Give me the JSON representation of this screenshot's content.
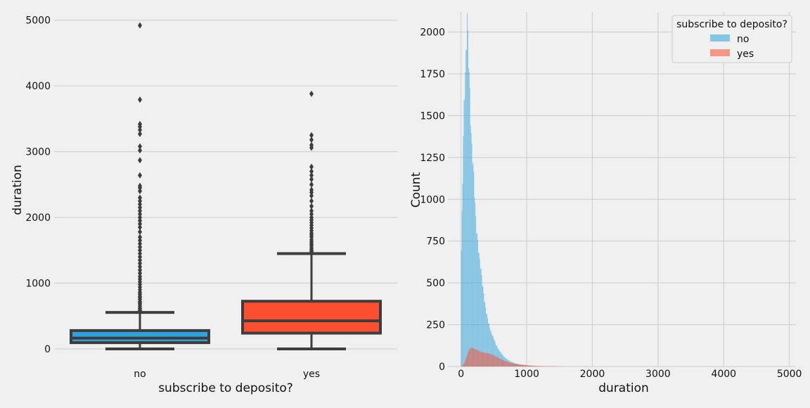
{
  "colors": {
    "background": "#f0f0f0",
    "grid": "#cbcbcb",
    "no": "#30a2da",
    "yes": "#fc4f30",
    "box_line": "#3d3d3d"
  },
  "chart_data": [
    {
      "type": "box",
      "xlabel": "subscribe to deposito?",
      "ylabel": "duration",
      "categories": [
        "no",
        "yes"
      ],
      "ylim": [
        -150,
        5200
      ],
      "yticks": [
        0,
        1000,
        2000,
        3000,
        4000,
        5000
      ],
      "grid": true,
      "boxes": [
        {
          "category": "no",
          "min": 0,
          "q1": 95,
          "median": 164,
          "q3": 279,
          "whisker_high": 555,
          "outliers": [
            560,
            580,
            600,
            620,
            650,
            680,
            700,
            720,
            750,
            780,
            800,
            830,
            860,
            900,
            940,
            980,
            1020,
            1060,
            1100,
            1150,
            1200,
            1250,
            1300,
            1350,
            1400,
            1450,
            1500,
            1550,
            1600,
            1650,
            1700,
            1780,
            1850,
            1900,
            1950,
            2000,
            2050,
            2100,
            2150,
            2200,
            2250,
            2300,
            2400,
            2450,
            2480,
            2640,
            2870,
            3020,
            3080,
            3270,
            3330,
            3380,
            3420,
            3790,
            4920
          ]
        },
        {
          "category": "yes",
          "min": 0,
          "q1": 240,
          "median": 426,
          "q3": 725,
          "whisker_high": 1450,
          "outliers": [
            1460,
            1480,
            1500,
            1520,
            1550,
            1580,
            1600,
            1630,
            1660,
            1700,
            1730,
            1760,
            1800,
            1840,
            1880,
            1920,
            1960,
            2000,
            2050,
            2100,
            2170,
            2250,
            2330,
            2380,
            2420,
            2500,
            2580,
            2640,
            2700,
            2770,
            3060,
            3100,
            3180,
            3250,
            3880
          ]
        }
      ]
    },
    {
      "type": "histogram",
      "xlabel": "duration",
      "ylabel": "Count",
      "xlim": [
        -200,
        5100
      ],
      "ylim": [
        0,
        2120
      ],
      "xticks": [
        0,
        1000,
        2000,
        3000,
        4000,
        5000
      ],
      "yticks": [
        0,
        250,
        500,
        750,
        1000,
        1250,
        1500,
        1750,
        2000
      ],
      "grid": true,
      "legend": {
        "title": "subscribe to deposito?",
        "placement": "top-right",
        "entries": [
          "no",
          "yes"
        ]
      },
      "bin_width": 10,
      "series": [
        {
          "name": "no",
          "points": [
            [
              0,
              590
            ],
            [
              20,
              1000
            ],
            [
              40,
              1470
            ],
            [
              60,
              1660
            ],
            [
              80,
              1830
            ],
            [
              95,
              2030
            ],
            [
              110,
              1830
            ],
            [
              130,
              1640
            ],
            [
              150,
              1380
            ],
            [
              170,
              1240
            ],
            [
              190,
              1170
            ],
            [
              210,
              1000
            ],
            [
              230,
              850
            ],
            [
              250,
              780
            ],
            [
              270,
              700
            ],
            [
              290,
              640
            ],
            [
              310,
              580
            ],
            [
              330,
              500
            ],
            [
              350,
              430
            ],
            [
              370,
              370
            ],
            [
              390,
              320
            ],
            [
              410,
              280
            ],
            [
              430,
              240
            ],
            [
              450,
              210
            ],
            [
              480,
              180
            ],
            [
              510,
              150
            ],
            [
              540,
              120
            ],
            [
              570,
              100
            ],
            [
              600,
              85
            ],
            [
              640,
              65
            ],
            [
              680,
              50
            ],
            [
              720,
              40
            ],
            [
              760,
              30
            ],
            [
              800,
              22
            ],
            [
              850,
              16
            ],
            [
              900,
              11
            ],
            [
              950,
              8
            ],
            [
              1000,
              6
            ],
            [
              1100,
              3
            ],
            [
              1200,
              2
            ],
            [
              1300,
              1
            ],
            [
              1400,
              1
            ],
            [
              1500,
              0
            ]
          ]
        },
        {
          "name": "yes",
          "points": [
            [
              0,
              0
            ],
            [
              40,
              10
            ],
            [
              80,
              50
            ],
            [
              120,
              95
            ],
            [
              160,
              110
            ],
            [
              200,
              105
            ],
            [
              240,
              100
            ],
            [
              280,
              95
            ],
            [
              320,
              90
            ],
            [
              360,
              85
            ],
            [
              400,
              80
            ],
            [
              440,
              75
            ],
            [
              480,
              68
            ],
            [
              520,
              60
            ],
            [
              560,
              52
            ],
            [
              600,
              45
            ],
            [
              640,
              38
            ],
            [
              680,
              32
            ],
            [
              720,
              27
            ],
            [
              760,
              22
            ],
            [
              800,
              18
            ],
            [
              850,
              15
            ],
            [
              900,
              12
            ],
            [
              950,
              10
            ],
            [
              1000,
              8
            ],
            [
              1050,
              6
            ],
            [
              1100,
              5
            ],
            [
              1150,
              4
            ],
            [
              1200,
              3
            ],
            [
              1300,
              2
            ],
            [
              1400,
              2
            ],
            [
              1500,
              1
            ],
            [
              1600,
              0
            ]
          ]
        }
      ]
    }
  ]
}
